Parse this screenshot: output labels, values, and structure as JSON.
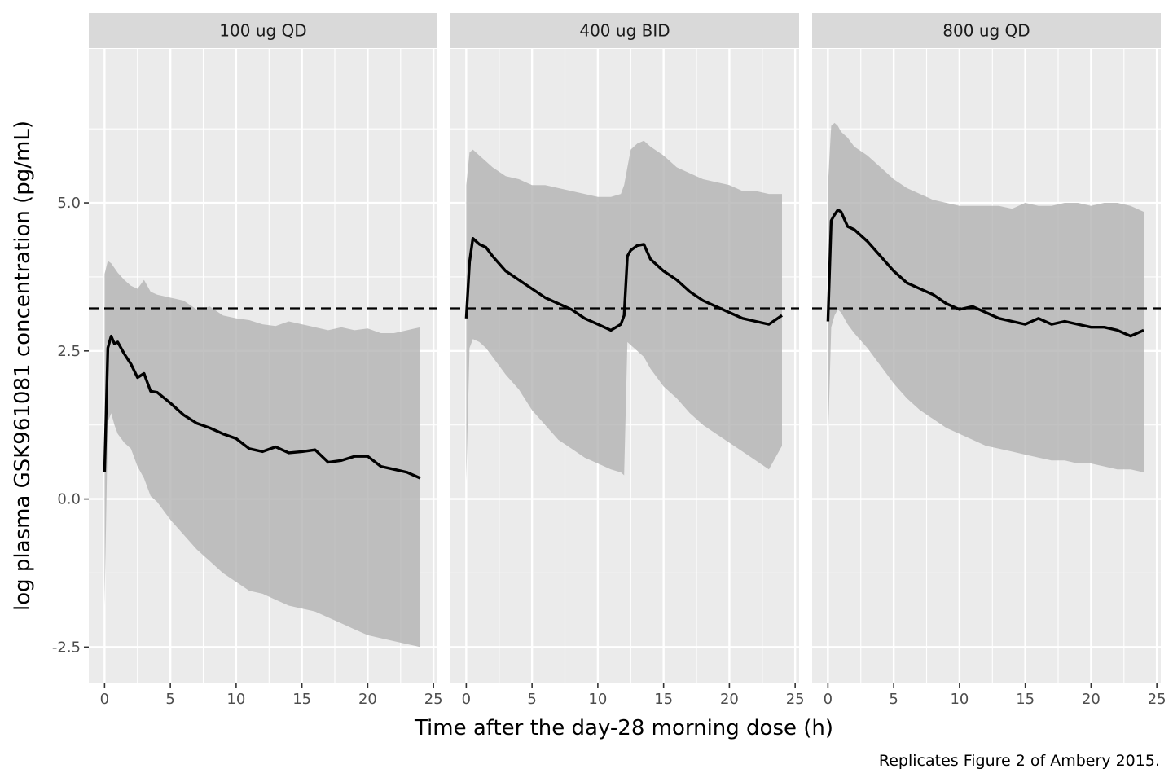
{
  "chart_data": {
    "type": "line",
    "xlabel": "Time after the day-28 morning dose (h)",
    "ylabel": "log plasma GSK961081 concentration (pg/mL)",
    "caption": "Replicates Figure 2 of Ambery 2015.",
    "xlim": [
      -1.2,
      25.3
    ],
    "ylim": [
      -3.1,
      7.6
    ],
    "x_ticks": [
      0,
      5,
      10,
      15,
      20,
      25
    ],
    "x_tick_labels": [
      "0",
      "5",
      "10",
      "15",
      "20",
      "25"
    ],
    "y_ticks": [
      -2.5,
      0,
      2.5,
      5
    ],
    "y_tick_labels": [
      "-2.5",
      "0.0",
      "2.5",
      "5.0"
    ],
    "reference_line": {
      "style": "dashed",
      "y": 3.22
    },
    "legend": "none",
    "grid": true,
    "panels": [
      {
        "label": "100 ug QD",
        "x": [
          0,
          0.25,
          0.5,
          0.75,
          1,
          1.5,
          2,
          2.5,
          3,
          3.5,
          4,
          5,
          6,
          7,
          8,
          9,
          10,
          11,
          12,
          13,
          14,
          15,
          16,
          17,
          18,
          19,
          20,
          21,
          22,
          23,
          24
        ],
        "median": [
          0.45,
          2.55,
          2.75,
          2.62,
          2.65,
          2.45,
          2.28,
          2.05,
          2.12,
          1.82,
          1.8,
          1.62,
          1.42,
          1.28,
          1.2,
          1.1,
          1.02,
          0.85,
          0.8,
          0.88,
          0.78,
          0.8,
          0.83,
          0.62,
          0.65,
          0.72,
          0.72,
          0.55,
          0.5,
          0.45,
          0.35
        ],
        "upper": [
          3.8,
          4.02,
          3.98,
          3.9,
          3.82,
          3.7,
          3.6,
          3.55,
          3.7,
          3.5,
          3.45,
          3.4,
          3.35,
          3.2,
          3.25,
          3.1,
          3.05,
          3.02,
          2.95,
          2.92,
          3.0,
          2.95,
          2.9,
          2.85,
          2.9,
          2.85,
          2.88,
          2.8,
          2.8,
          2.85,
          2.9
        ],
        "lower": [
          -1.8,
          1.3,
          1.45,
          1.25,
          1.1,
          0.95,
          0.85,
          0.55,
          0.35,
          0.05,
          -0.05,
          -0.35,
          -0.6,
          -0.85,
          -1.05,
          -1.25,
          -1.4,
          -1.55,
          -1.6,
          -1.7,
          -1.8,
          -1.85,
          -1.9,
          -2.0,
          -2.1,
          -2.2,
          -2.3,
          -2.35,
          -2.4,
          -2.45,
          -2.5
        ]
      },
      {
        "label": "400 ug BID",
        "x": [
          0,
          0.25,
          0.5,
          1,
          1.5,
          2,
          3,
          4,
          5,
          6,
          7,
          8,
          9,
          10,
          11,
          11.75,
          12,
          12.25,
          12.5,
          13,
          13.5,
          14,
          15,
          16,
          17,
          18,
          19,
          20,
          21,
          22,
          23,
          24
        ],
        "median": [
          3.05,
          4.0,
          4.4,
          4.3,
          4.25,
          4.1,
          3.85,
          3.7,
          3.55,
          3.4,
          3.3,
          3.2,
          3.05,
          2.95,
          2.85,
          2.95,
          3.1,
          4.1,
          4.2,
          4.28,
          4.3,
          4.05,
          3.85,
          3.7,
          3.5,
          3.35,
          3.25,
          3.15,
          3.05,
          3.0,
          2.95,
          3.1
        ],
        "upper": [
          5.3,
          5.85,
          5.9,
          5.8,
          5.7,
          5.6,
          5.45,
          5.4,
          5.3,
          5.3,
          5.25,
          5.2,
          5.15,
          5.1,
          5.1,
          5.15,
          5.3,
          5.6,
          5.9,
          6.0,
          6.05,
          5.95,
          5.8,
          5.6,
          5.5,
          5.4,
          5.35,
          5.3,
          5.2,
          5.2,
          5.15,
          5.15
        ],
        "lower": [
          0.3,
          2.55,
          2.7,
          2.65,
          2.55,
          2.4,
          2.1,
          1.85,
          1.5,
          1.25,
          1.0,
          0.85,
          0.7,
          0.6,
          0.5,
          0.45,
          0.4,
          2.65,
          2.6,
          2.5,
          2.4,
          2.2,
          1.9,
          1.7,
          1.45,
          1.25,
          1.1,
          0.95,
          0.8,
          0.65,
          0.5,
          0.9
        ]
      },
      {
        "label": "800 ug QD",
        "x": [
          0,
          0.25,
          0.5,
          0.75,
          1,
          1.5,
          2,
          3,
          4,
          5,
          6,
          7,
          8,
          9,
          10,
          11,
          12,
          13,
          14,
          15,
          16,
          17,
          18,
          19,
          20,
          21,
          22,
          23,
          24
        ],
        "median": [
          3.0,
          4.7,
          4.8,
          4.88,
          4.85,
          4.6,
          4.55,
          4.35,
          4.1,
          3.85,
          3.65,
          3.55,
          3.45,
          3.3,
          3.2,
          3.25,
          3.15,
          3.05,
          3.0,
          2.95,
          3.05,
          2.95,
          3.0,
          2.95,
          2.9,
          2.9,
          2.85,
          2.75,
          2.85
        ],
        "upper": [
          5.3,
          6.3,
          6.35,
          6.3,
          6.2,
          6.1,
          5.95,
          5.8,
          5.6,
          5.4,
          5.25,
          5.15,
          5.05,
          5.0,
          4.95,
          4.95,
          4.95,
          4.95,
          4.9,
          5.0,
          4.95,
          4.95,
          5.0,
          5.0,
          4.95,
          5.0,
          5.0,
          4.95,
          4.85
        ],
        "lower": [
          0.9,
          2.9,
          3.1,
          3.2,
          3.15,
          2.95,
          2.8,
          2.55,
          2.25,
          1.95,
          1.7,
          1.5,
          1.35,
          1.2,
          1.1,
          1.0,
          0.9,
          0.85,
          0.8,
          0.75,
          0.7,
          0.65,
          0.65,
          0.6,
          0.6,
          0.55,
          0.5,
          0.5,
          0.45
        ]
      }
    ]
  }
}
